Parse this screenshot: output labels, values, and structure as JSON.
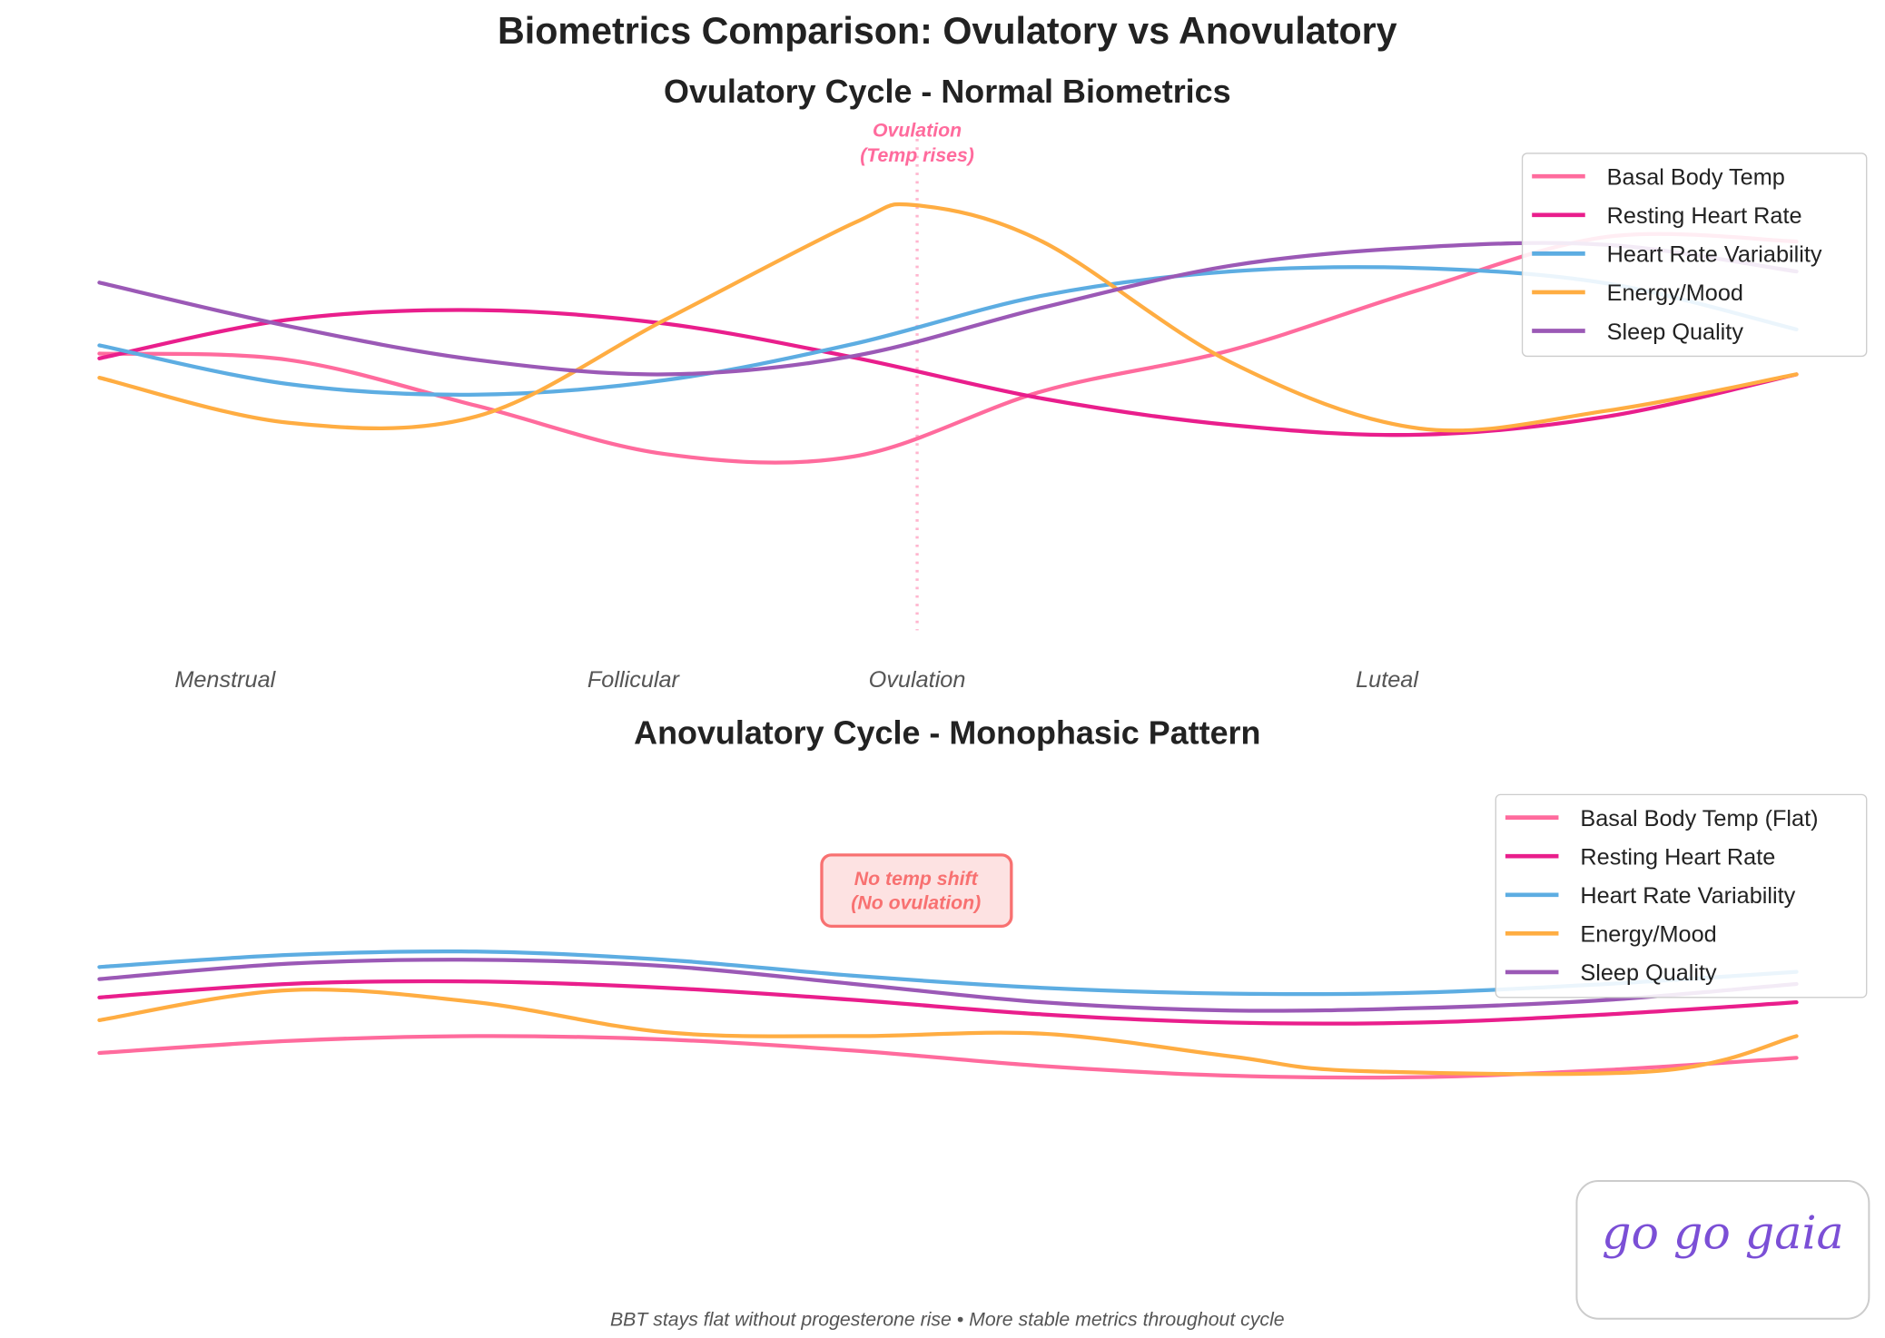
{
  "title": "Biometrics Comparison: Ovulatory vs Anovulatory",
  "footer": "BBT stays flat without progesterone rise • More stable metrics throughout cycle",
  "logo": "go go gaia",
  "colors": {
    "bbt": "#ff6b9d",
    "rhr": "#e91e8c",
    "hrv": "#5dade2",
    "energy": "#ffad42",
    "sleep": "#9b59b6",
    "annotation": "#f87171",
    "annotation_bg": "#fde2e2",
    "logo": "#7b4fd6"
  },
  "chart_data": [
    {
      "type": "line",
      "title": "Ovulatory Cycle - Normal Biometrics",
      "xlabel": "",
      "ylabel": "",
      "xlim": [
        1,
        28
      ],
      "ylim": [
        0,
        100
      ],
      "grid": false,
      "axes_visible": false,
      "legend_position": "top-right",
      "phase_labels": [
        {
          "label": "Menstrual",
          "x": 3
        },
        {
          "label": "Follicular",
          "x": 9.5
        },
        {
          "label": "Ovulation",
          "x": 14
        },
        {
          "label": "Luteal",
          "x": 21.5
        }
      ],
      "ovulation_line": {
        "x": 14,
        "label_line1": "Ovulation",
        "label_line2": "(Temp rises)"
      },
      "series": [
        {
          "name": "Basal Body Temp",
          "color": "#ff6b9d",
          "points": [
            [
              1,
              56.8
            ],
            [
              4,
              55.5
            ],
            [
              7,
              46
            ],
            [
              10,
              36
            ],
            [
              13,
              35.5
            ],
            [
              16,
              49
            ],
            [
              19,
              57.5
            ],
            [
              22,
              70
            ],
            [
              25,
              81
            ],
            [
              28,
              80
            ]
          ]
        },
        {
          "name": "Resting Heart Rate",
          "color": "#e91e8c",
          "points": [
            [
              1,
              55.8
            ],
            [
              4,
              63.8
            ],
            [
              7,
              65.8
            ],
            [
              10,
              63
            ],
            [
              13,
              56
            ],
            [
              16,
              47.5
            ],
            [
              19,
              42
            ],
            [
              22,
              40
            ],
            [
              25,
              43.8
            ],
            [
              28,
              52.5
            ]
          ]
        },
        {
          "name": "Heart Rate Variability",
          "color": "#5dade2",
          "points": [
            [
              1,
              58.5
            ],
            [
              4,
              50.5
            ],
            [
              7,
              48.3
            ],
            [
              10,
              51.3
            ],
            [
              13,
              58.8
            ],
            [
              16,
              68.8
            ],
            [
              19,
              73.8
            ],
            [
              22,
              74.5
            ],
            [
              25,
              71.3
            ],
            [
              28,
              61.8
            ]
          ]
        },
        {
          "name": "Energy/Mood",
          "color": "#ffad42",
          "points": [
            [
              1,
              51.8
            ],
            [
              4,
              42.5
            ],
            [
              7,
              43.8
            ],
            [
              10,
              63.8
            ],
            [
              13,
              83.8
            ],
            [
              14,
              87.5
            ],
            [
              16,
              80
            ],
            [
              19,
              55
            ],
            [
              22,
              41.3
            ],
            [
              25,
              45
            ],
            [
              28,
              52.5
            ]
          ]
        },
        {
          "name": "Sleep Quality",
          "color": "#9b59b6",
          "points": [
            [
              1,
              71.5
            ],
            [
              4,
              62.5
            ],
            [
              7,
              55.5
            ],
            [
              10,
              52.5
            ],
            [
              13,
              56.3
            ],
            [
              16,
              66.3
            ],
            [
              19,
              75
            ],
            [
              22,
              78.8
            ],
            [
              25,
              79.3
            ],
            [
              28,
              73.8
            ]
          ]
        }
      ]
    },
    {
      "type": "line",
      "title": "Anovulatory Cycle - Monophasic Pattern",
      "xlabel": "",
      "ylabel": "",
      "xlim": [
        1,
        28
      ],
      "ylim": [
        0,
        100
      ],
      "grid": false,
      "axes_visible": false,
      "legend_position": "top-right",
      "annotation": {
        "line1": "No temp shift",
        "line2": "(No ovulation)"
      },
      "series": [
        {
          "name": "Basal Body Temp (Flat)",
          "color": "#ff6b9d",
          "points": [
            [
              1,
              42
            ],
            [
              4,
              44.5
            ],
            [
              7,
              45.5
            ],
            [
              10,
              44.8
            ],
            [
              13,
              42.5
            ],
            [
              16,
              39.3
            ],
            [
              19,
              37.3
            ],
            [
              22,
              37
            ],
            [
              25,
              38.5
            ],
            [
              28,
              41
            ]
          ]
        },
        {
          "name": "Resting Heart Rate",
          "color": "#e91e8c",
          "points": [
            [
              1,
              53.5
            ],
            [
              4,
              56.3
            ],
            [
              7,
              56.8
            ],
            [
              10,
              55.5
            ],
            [
              13,
              53
            ],
            [
              16,
              50
            ],
            [
              19,
              48.3
            ],
            [
              22,
              48.3
            ],
            [
              25,
              50
            ],
            [
              28,
              52.5
            ]
          ]
        },
        {
          "name": "Heart Rate Variability",
          "color": "#5dade2",
          "points": [
            [
              1,
              59.8
            ],
            [
              4,
              62.3
            ],
            [
              7,
              63
            ],
            [
              10,
              61.3
            ],
            [
              13,
              58
            ],
            [
              16,
              55.5
            ],
            [
              19,
              54.3
            ],
            [
              22,
              54.5
            ],
            [
              25,
              56.3
            ],
            [
              28,
              58.8
            ]
          ]
        },
        {
          "name": "Energy/Mood",
          "color": "#ffad42",
          "points": [
            [
              1,
              48.8
            ],
            [
              4,
              55
            ],
            [
              7,
              52.5
            ],
            [
              10,
              46.3
            ],
            [
              13,
              45.5
            ],
            [
              16,
              46
            ],
            [
              19,
              41.3
            ],
            [
              21,
              38.3
            ],
            [
              25.8,
              38.3
            ],
            [
              28,
              45.5
            ]
          ]
        },
        {
          "name": "Sleep Quality",
          "color": "#9b59b6",
          "points": [
            [
              1,
              57.3
            ],
            [
              4,
              60.5
            ],
            [
              7,
              61.3
            ],
            [
              10,
              60
            ],
            [
              13,
              56.3
            ],
            [
              16,
              52.5
            ],
            [
              19,
              50.8
            ],
            [
              22,
              51.3
            ],
            [
              25,
              53
            ],
            [
              28,
              56.3
            ]
          ]
        }
      ]
    }
  ]
}
